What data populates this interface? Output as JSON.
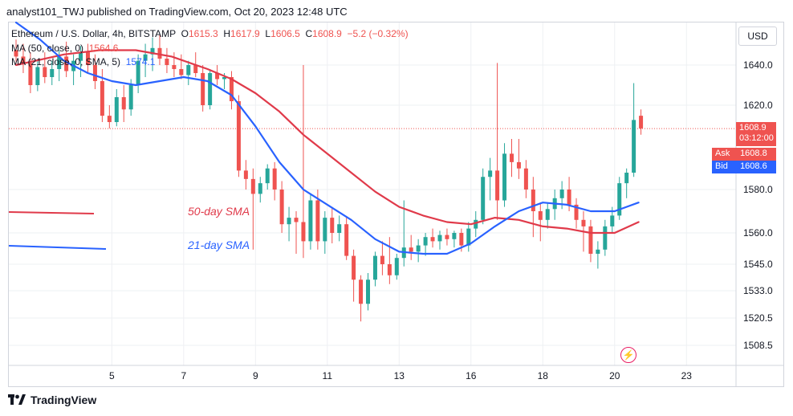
{
  "header": {
    "text": "analyst101_TWJ published on TradingView.com, Oct 20, 2023 12:48 UTC"
  },
  "legend": {
    "symbol_line": "Ethereum / U.S. Dollar, 4h, BITSTAMP",
    "ohlc": [
      {
        "label": "O",
        "value": "1615.3"
      },
      {
        "label": "H",
        "value": "1617.9"
      },
      {
        "label": "L",
        "value": "1606.5"
      },
      {
        "label": "C",
        "value": "1608.9"
      }
    ],
    "change": "−5.2 (−0.32%)",
    "ma50_label": "MA (50, close, 0)",
    "ma50_value": "1564.6",
    "ma21_label": "MA (21, close, 0, SMA, 5)",
    "ma21_value": "1574.1"
  },
  "currency": "USD",
  "last_price": {
    "price": "1608.9",
    "countdown": "03:12:00"
  },
  "ask": {
    "label": "Ask",
    "value": "1608.8"
  },
  "bid": {
    "label": "Bid",
    "value": "1608.6"
  },
  "annotations": {
    "sma50": "50-day SMA",
    "sma21": "21-day SMA"
  },
  "footer": {
    "brand": "TradingView"
  },
  "colors": {
    "up": "#26a69a",
    "down": "#ef5350",
    "ma50": "#e03a4a",
    "ma21": "#2962ff",
    "grid": "#eef0f3"
  },
  "chart_data": {
    "type": "candlestick",
    "title": "Ethereum / U.S. Dollar, 4h, BITSTAMP",
    "y_ticks": [
      1640.0,
      1620.0,
      1580.0,
      1560.0,
      1545.0,
      1533.0,
      1520.5,
      1508.5
    ],
    "x_ticks": [
      "5",
      "7",
      "9",
      "11",
      "13",
      "16",
      "18",
      "20",
      "23"
    ],
    "x_tick_positions": [
      4,
      7,
      10,
      13,
      16,
      19,
      22,
      25,
      28
    ],
    "candles": [
      {
        "t": 0.0,
        "o": 1647,
        "h": 1652,
        "l": 1640,
        "c": 1644
      },
      {
        "t": 0.3,
        "o": 1644,
        "h": 1650,
        "l": 1636,
        "c": 1641
      },
      {
        "t": 0.6,
        "o": 1641,
        "h": 1646,
        "l": 1626,
        "c": 1630
      },
      {
        "t": 0.9,
        "o": 1630,
        "h": 1642,
        "l": 1627,
        "c": 1639
      },
      {
        "t": 1.2,
        "o": 1639,
        "h": 1646,
        "l": 1631,
        "c": 1634
      },
      {
        "t": 1.5,
        "o": 1634,
        "h": 1642,
        "l": 1630,
        "c": 1638
      },
      {
        "t": 1.8,
        "o": 1638,
        "h": 1647,
        "l": 1632,
        "c": 1644
      },
      {
        "t": 2.1,
        "o": 1644,
        "h": 1651,
        "l": 1634,
        "c": 1637
      },
      {
        "t": 2.4,
        "o": 1637,
        "h": 1645,
        "l": 1630,
        "c": 1642
      },
      {
        "t": 2.7,
        "o": 1642,
        "h": 1649,
        "l": 1634,
        "c": 1646
      },
      {
        "t": 3.0,
        "o": 1646,
        "h": 1650,
        "l": 1636,
        "c": 1640
      },
      {
        "t": 3.3,
        "o": 1640,
        "h": 1645,
        "l": 1628,
        "c": 1632
      },
      {
        "t": 3.6,
        "o": 1632,
        "h": 1638,
        "l": 1612,
        "c": 1615
      },
      {
        "t": 3.9,
        "o": 1615,
        "h": 1620,
        "l": 1609,
        "c": 1612
      },
      {
        "t": 4.2,
        "o": 1612,
        "h": 1628,
        "l": 1610,
        "c": 1624
      },
      {
        "t": 4.5,
        "o": 1624,
        "h": 1630,
        "l": 1612,
        "c": 1618
      },
      {
        "t": 4.8,
        "o": 1618,
        "h": 1633,
        "l": 1615,
        "c": 1630
      },
      {
        "t": 5.1,
        "o": 1630,
        "h": 1645,
        "l": 1626,
        "c": 1642
      },
      {
        "t": 5.4,
        "o": 1642,
        "h": 1650,
        "l": 1634,
        "c": 1645
      },
      {
        "t": 5.7,
        "o": 1645,
        "h": 1653,
        "l": 1637,
        "c": 1648
      },
      {
        "t": 6.0,
        "o": 1648,
        "h": 1654,
        "l": 1640,
        "c": 1643
      },
      {
        "t": 6.3,
        "o": 1643,
        "h": 1648,
        "l": 1636,
        "c": 1640
      },
      {
        "t": 6.6,
        "o": 1640,
        "h": 1646,
        "l": 1634,
        "c": 1638
      },
      {
        "t": 6.9,
        "o": 1638,
        "h": 1645,
        "l": 1633,
        "c": 1635
      },
      {
        "t": 7.2,
        "o": 1635,
        "h": 1642,
        "l": 1630,
        "c": 1640
      },
      {
        "t": 7.5,
        "o": 1640,
        "h": 1646,
        "l": 1634,
        "c": 1636
      },
      {
        "t": 7.8,
        "o": 1636,
        "h": 1640,
        "l": 1617,
        "c": 1620
      },
      {
        "t": 8.1,
        "o": 1620,
        "h": 1638,
        "l": 1618,
        "c": 1636
      },
      {
        "t": 8.4,
        "o": 1636,
        "h": 1640,
        "l": 1630,
        "c": 1633
      },
      {
        "t": 8.7,
        "o": 1633,
        "h": 1636,
        "l": 1628,
        "c": 1634
      },
      {
        "t": 9.0,
        "o": 1634,
        "h": 1637,
        "l": 1618,
        "c": 1622
      },
      {
        "t": 9.3,
        "o": 1622,
        "h": 1625,
        "l": 1586,
        "c": 1589
      },
      {
        "t": 9.6,
        "o": 1589,
        "h": 1594,
        "l": 1580,
        "c": 1585
      },
      {
        "t": 9.9,
        "o": 1585,
        "h": 1590,
        "l": 1552,
        "c": 1578
      },
      {
        "t": 10.2,
        "o": 1578,
        "h": 1586,
        "l": 1574,
        "c": 1583
      },
      {
        "t": 10.5,
        "o": 1583,
        "h": 1592,
        "l": 1580,
        "c": 1590
      },
      {
        "t": 10.8,
        "o": 1590,
        "h": 1593,
        "l": 1575,
        "c": 1580
      },
      {
        "t": 11.1,
        "o": 1580,
        "h": 1584,
        "l": 1560,
        "c": 1564
      },
      {
        "t": 11.4,
        "o": 1564,
        "h": 1572,
        "l": 1556,
        "c": 1567
      },
      {
        "t": 11.7,
        "o": 1567,
        "h": 1570,
        "l": 1550,
        "c": 1565
      },
      {
        "t": 12.0,
        "o": 1565,
        "h": 1640,
        "l": 1548,
        "c": 1556
      },
      {
        "t": 12.3,
        "o": 1556,
        "h": 1578,
        "l": 1552,
        "c": 1575
      },
      {
        "t": 12.6,
        "o": 1575,
        "h": 1580,
        "l": 1552,
        "c": 1556
      },
      {
        "t": 12.9,
        "o": 1556,
        "h": 1570,
        "l": 1550,
        "c": 1567
      },
      {
        "t": 13.2,
        "o": 1567,
        "h": 1572,
        "l": 1555,
        "c": 1560
      },
      {
        "t": 13.5,
        "o": 1560,
        "h": 1568,
        "l": 1556,
        "c": 1564
      },
      {
        "t": 13.8,
        "o": 1564,
        "h": 1567,
        "l": 1547,
        "c": 1549
      },
      {
        "t": 14.1,
        "o": 1549,
        "h": 1552,
        "l": 1528,
        "c": 1538
      },
      {
        "t": 14.4,
        "o": 1538,
        "h": 1540,
        "l": 1519,
        "c": 1527
      },
      {
        "t": 14.7,
        "o": 1527,
        "h": 1541,
        "l": 1524,
        "c": 1538
      },
      {
        "t": 15.0,
        "o": 1538,
        "h": 1551,
        "l": 1535,
        "c": 1549
      },
      {
        "t": 15.3,
        "o": 1549,
        "h": 1556,
        "l": 1540,
        "c": 1545
      },
      {
        "t": 15.6,
        "o": 1545,
        "h": 1558,
        "l": 1536,
        "c": 1540
      },
      {
        "t": 15.9,
        "o": 1540,
        "h": 1550,
        "l": 1538,
        "c": 1548
      },
      {
        "t": 16.2,
        "o": 1548,
        "h": 1575,
        "l": 1544,
        "c": 1553
      },
      {
        "t": 16.5,
        "o": 1553,
        "h": 1559,
        "l": 1547,
        "c": 1551
      },
      {
        "t": 16.8,
        "o": 1551,
        "h": 1557,
        "l": 1546,
        "c": 1554
      },
      {
        "t": 17.1,
        "o": 1554,
        "h": 1560,
        "l": 1549,
        "c": 1558
      },
      {
        "t": 17.4,
        "o": 1558,
        "h": 1562,
        "l": 1553,
        "c": 1556
      },
      {
        "t": 17.7,
        "o": 1556,
        "h": 1561,
        "l": 1552,
        "c": 1559
      },
      {
        "t": 18.0,
        "o": 1559,
        "h": 1562,
        "l": 1554,
        "c": 1557
      },
      {
        "t": 18.3,
        "o": 1557,
        "h": 1561,
        "l": 1553,
        "c": 1560
      },
      {
        "t": 18.6,
        "o": 1560,
        "h": 1562,
        "l": 1551,
        "c": 1554
      },
      {
        "t": 18.9,
        "o": 1554,
        "h": 1565,
        "l": 1551,
        "c": 1562
      },
      {
        "t": 19.2,
        "o": 1562,
        "h": 1570,
        "l": 1558,
        "c": 1566
      },
      {
        "t": 19.5,
        "o": 1566,
        "h": 1590,
        "l": 1564,
        "c": 1586
      },
      {
        "t": 19.8,
        "o": 1586,
        "h": 1595,
        "l": 1575,
        "c": 1589
      },
      {
        "t": 20.1,
        "o": 1589,
        "h": 1641,
        "l": 1566,
        "c": 1575
      },
      {
        "t": 20.4,
        "o": 1575,
        "h": 1602,
        "l": 1572,
        "c": 1597
      },
      {
        "t": 20.7,
        "o": 1597,
        "h": 1604,
        "l": 1586,
        "c": 1593
      },
      {
        "t": 21.0,
        "o": 1593,
        "h": 1604,
        "l": 1585,
        "c": 1590
      },
      {
        "t": 21.3,
        "o": 1590,
        "h": 1594,
        "l": 1576,
        "c": 1580
      },
      {
        "t": 21.6,
        "o": 1580,
        "h": 1586,
        "l": 1558,
        "c": 1570
      },
      {
        "t": 21.9,
        "o": 1570,
        "h": 1574,
        "l": 1556,
        "c": 1566
      },
      {
        "t": 22.2,
        "o": 1566,
        "h": 1574,
        "l": 1562,
        "c": 1571
      },
      {
        "t": 22.5,
        "o": 1571,
        "h": 1580,
        "l": 1566,
        "c": 1576
      },
      {
        "t": 22.8,
        "o": 1576,
        "h": 1584,
        "l": 1571,
        "c": 1580
      },
      {
        "t": 23.1,
        "o": 1580,
        "h": 1586,
        "l": 1570,
        "c": 1573
      },
      {
        "t": 23.4,
        "o": 1573,
        "h": 1576,
        "l": 1562,
        "c": 1566
      },
      {
        "t": 23.7,
        "o": 1566,
        "h": 1570,
        "l": 1551,
        "c": 1563
      },
      {
        "t": 24.0,
        "o": 1563,
        "h": 1566,
        "l": 1546,
        "c": 1550
      },
      {
        "t": 24.3,
        "o": 1550,
        "h": 1556,
        "l": 1543,
        "c": 1552
      },
      {
        "t": 24.6,
        "o": 1552,
        "h": 1566,
        "l": 1549,
        "c": 1563
      },
      {
        "t": 24.9,
        "o": 1563,
        "h": 1572,
        "l": 1560,
        "c": 1568
      },
      {
        "t": 25.2,
        "o": 1568,
        "h": 1586,
        "l": 1566,
        "c": 1583
      },
      {
        "t": 25.5,
        "o": 1583,
        "h": 1590,
        "l": 1576,
        "c": 1588
      },
      {
        "t": 25.8,
        "o": 1588,
        "h": 1631,
        "l": 1586,
        "c": 1613
      },
      {
        "t": 26.1,
        "o": 1615,
        "h": 1618,
        "l": 1606,
        "c": 1609
      }
    ],
    "ma50": [
      [
        0,
        1640
      ],
      [
        2,
        1645
      ],
      [
        3.5,
        1647
      ],
      [
        5,
        1647
      ],
      [
        6.5,
        1644
      ],
      [
        8,
        1638
      ],
      [
        9,
        1633
      ],
      [
        10,
        1626
      ],
      [
        11,
        1617
      ],
      [
        12,
        1606
      ],
      [
        13,
        1597
      ],
      [
        14,
        1588
      ],
      [
        15,
        1579
      ],
      [
        16,
        1572
      ],
      [
        17,
        1568
      ],
      [
        18,
        1565
      ],
      [
        19,
        1564
      ],
      [
        20,
        1567
      ],
      [
        21,
        1566
      ],
      [
        22,
        1563
      ],
      [
        23,
        1562
      ],
      [
        24,
        1560
      ],
      [
        25,
        1560
      ],
      [
        26,
        1565
      ]
    ],
    "ma21": [
      [
        0,
        1660
      ],
      [
        1,
        1652
      ],
      [
        2,
        1642
      ],
      [
        3,
        1636
      ],
      [
        4,
        1632
      ],
      [
        5,
        1630
      ],
      [
        6,
        1632
      ],
      [
        7,
        1634
      ],
      [
        8,
        1632
      ],
      [
        9,
        1625
      ],
      [
        10,
        1610
      ],
      [
        11,
        1593
      ],
      [
        12,
        1580
      ],
      [
        13,
        1573
      ],
      [
        14,
        1566
      ],
      [
        15,
        1557
      ],
      [
        16,
        1551
      ],
      [
        17,
        1550
      ],
      [
        18,
        1550
      ],
      [
        19,
        1555
      ],
      [
        20,
        1563
      ],
      [
        21,
        1570
      ],
      [
        22,
        1574
      ],
      [
        23,
        1573
      ],
      [
        24,
        1570
      ],
      [
        25,
        1570
      ],
      [
        26,
        1574
      ]
    ],
    "last_price_line": 1608.9,
    "annotation_lines": [
      {
        "name": "50-day SMA",
        "color": "red"
      },
      {
        "name": "21-day SMA",
        "color": "blue"
      }
    ]
  }
}
